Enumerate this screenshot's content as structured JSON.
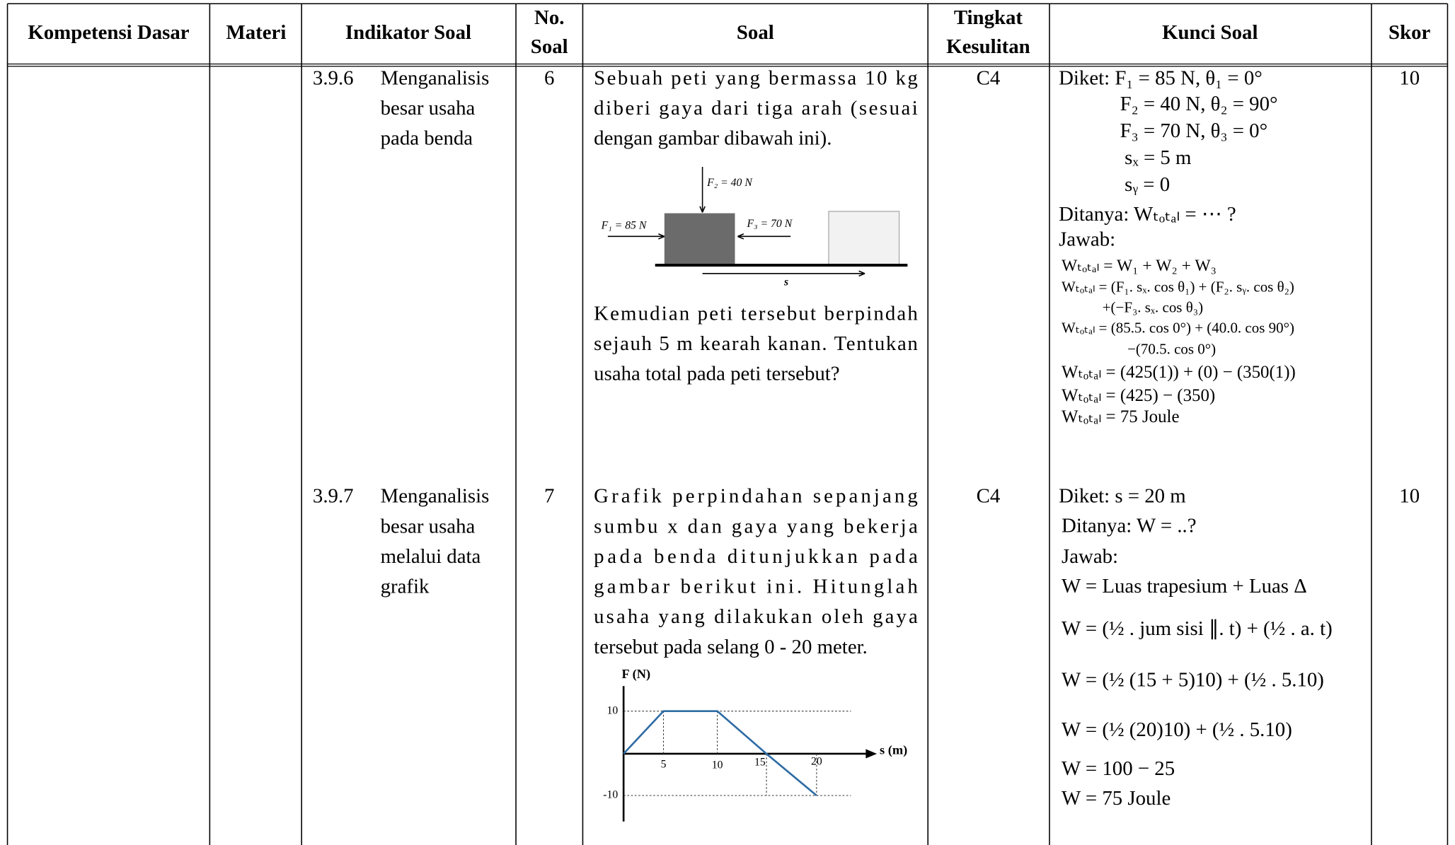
{
  "header": [
    [
      "Kompetensi Dasar"
    ],
    [
      "Materi"
    ],
    [
      "Indikator Soal"
    ],
    [
      "No.",
      "Soal"
    ],
    [
      "Soal"
    ],
    [
      "Tingkat",
      "Kesulitan"
    ],
    [
      "Kunci Soal"
    ],
    [
      "Skor"
    ]
  ],
  "rows": [
    {
      "code": "3.9.6",
      "indicator": [
        "Menganalisis",
        "besar usaha",
        "pada benda"
      ],
      "number": "6",
      "question": [
        "Sebuah peti yang bermassa 10 kg",
        "diberi gaya dari tiga arah (sesuai",
        "dengan gambar dibawah ini)."
      ],
      "figure": {
        "f2": "F₂ = 40 N",
        "f1": "F₁ = 85 N",
        "f3": "F₃ = 70 N",
        "s": "s"
      },
      "question_after": [
        "Kemudian peti tersebut berpindah",
        "sejauh 5 m kearah kanan. Tentukan",
        "usaha total pada peti tersebut?"
      ],
      "level": "C4",
      "answer": [
        "Diket: F₁ = 85 N,    θ₁ = 0°",
        "F₂ = 40 N,    θ₂ = 90°",
        "F₃ = 70 N,    θ₃ = 0°",
        "sₓ = 5 m",
        "sᵧ = 0",
        "Ditanya: Wₜₒₜₐₗ = ⋯ ?",
        "Jawab:",
        "Wₜₒₜₐₗ = W₁ + W₂ + W₃",
        "Wₜₒₜₐₗ = (F₁. sₓ. cos θ₁) + (F₂. sᵧ. cos θ₂)",
        "+(−F₃. sₓ. cos θ₃)",
        "Wₜₒₜₐₗ = (85.5. cos 0°) + (40.0. cos 90°)",
        "−(70.5. cos 0°)",
        "Wₜₒₜₐₗ = (425(1)) + (0) − (350(1))",
        "Wₜₒₜₐₗ = (425) − (350)",
        "Wₜₒₜₐₗ = 75 Joule"
      ],
      "score": "10"
    },
    {
      "code": "3.9.7",
      "indicator": [
        "Menganalisis",
        "besar usaha",
        "melalui data",
        "grafik"
      ],
      "number": "7",
      "question": [
        "Grafik perpindahan sepanjang",
        "sumbu x dan gaya yang bekerja",
        "pada benda ditunjukkan pada",
        "gambar berikut ini. Hitunglah",
        "usaha yang dilakukan oleh gaya",
        "tersebut pada selang 0 - 20 meter."
      ],
      "graph": {
        "y_label": "F (N)",
        "x_label": "s (m)",
        "y_ticks": [
          "10",
          "-10"
        ],
        "x_ticks": [
          "5",
          "10",
          "15",
          "20"
        ]
      },
      "level": "C4",
      "answer": [
        "Diket:  s = 20 m",
        "Ditanya: W = ..?",
        "Jawab:",
        "W = Luas trapesium + Luas Δ",
        "W = (½ . jum sisi ∥. t) + (½ . a. t)",
        "W = (½ (15 + 5)10) + (½ . 5.10)",
        "W = (½ (20)10) + (½ . 5.10)",
        "W = 100 − 25",
        "W = 75 Joule"
      ],
      "score": "10"
    }
  ]
}
